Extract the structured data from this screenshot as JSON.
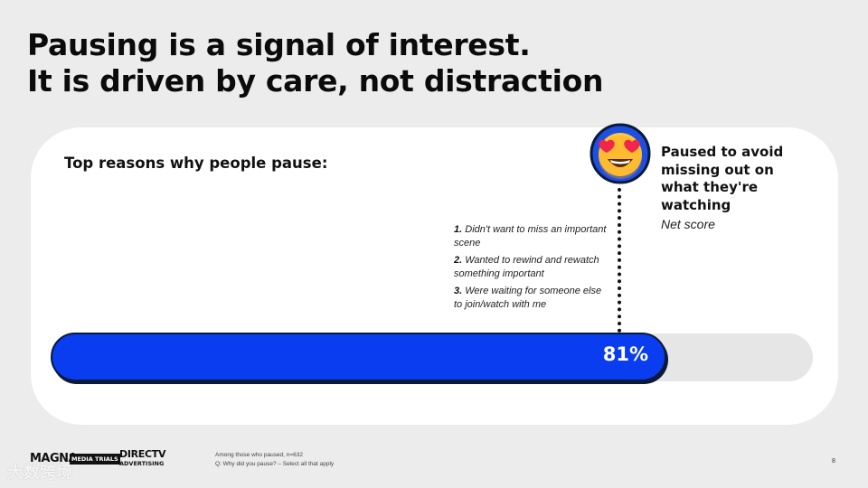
{
  "title": {
    "line1": "Pausing is a signal of interest.",
    "line2": "It is driven by care, not distraction"
  },
  "subtitle": "Top reasons why people pause:",
  "reasons": [
    {
      "num": "1.",
      "text": "Didn't want to miss an important scene"
    },
    {
      "num": "2.",
      "text": "Wanted to rewind and rewatch something important"
    },
    {
      "num": "3.",
      "text": "Were waiting for someone else to join/watch with me"
    }
  ],
  "metric": {
    "value_label": "81%",
    "fraction": 0.81,
    "bar_color": "#0a3cf0"
  },
  "callout": {
    "icon": "heart-eyes-emoji-icon",
    "label": "Paused to avoid missing out on what they're watching",
    "sub_label": "Net score"
  },
  "footer": {
    "logo1": "MAGNA",
    "logo1_badge": "MEDIA TRIALS",
    "logo2_line1": "DIRECTV",
    "logo2_line2": "ADVERTISING",
    "note1": "Among those who paused, n=632",
    "note2": "Q: Why did you pause? – Select all that apply",
    "page_number": "8"
  },
  "watermark": "大数跨境"
}
